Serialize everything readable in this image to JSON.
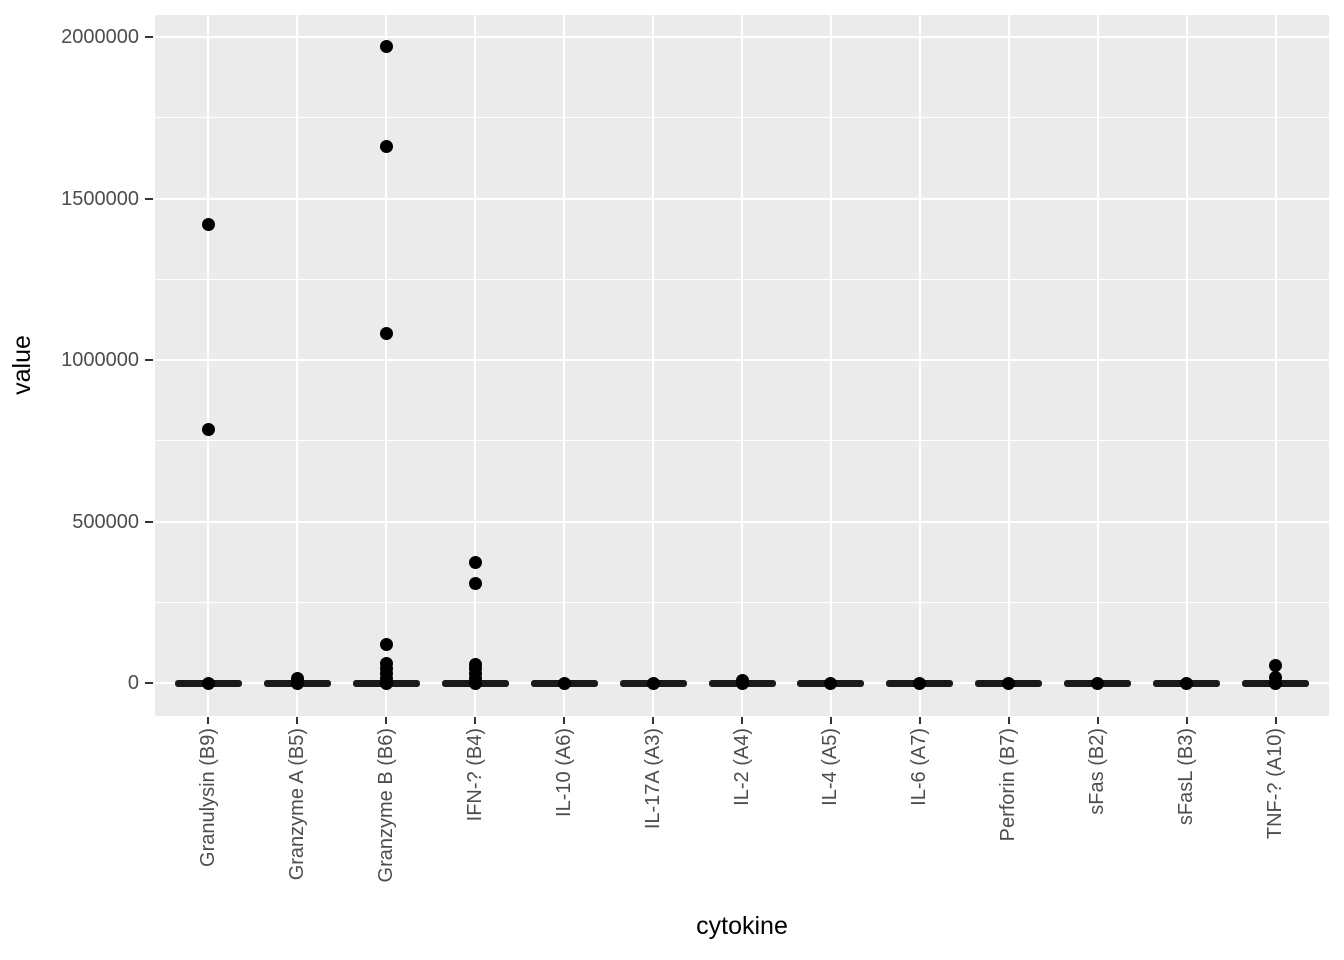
{
  "chart_data": {
    "type": "scatter",
    "variant": "strip-plot-with-median-bars",
    "title": "",
    "xlabel": "cytokine",
    "ylabel": "value",
    "legend": false,
    "grid": true,
    "panel_background": "grey",
    "categories": [
      "Granulysin (B9)",
      "Granzyme A (B5)",
      "Granzyme B (B6)",
      "IFN-? (B4)",
      "IL-10 (A6)",
      "IL-17A (A3)",
      "IL-2 (A4)",
      "IL-4 (A5)",
      "IL-6 (A7)",
      "Perforin (B7)",
      "sFas (B2)",
      "sFasL (B3)",
      "TNF-? (A10)"
    ],
    "groups": [
      {
        "label": "Granulysin (B9)",
        "median_bar": 0,
        "points": [
          0,
          784000,
          1420000
        ]
      },
      {
        "label": "Granzyme A (B5)",
        "median_bar": 0,
        "points": [
          0,
          8000,
          16000
        ]
      },
      {
        "label": "Granzyme B (B6)",
        "median_bar": 0,
        "points": [
          0,
          15000,
          30000,
          45000,
          62000,
          121000,
          1083000,
          1660000,
          1970000
        ]
      },
      {
        "label": "IFN-? (B4)",
        "median_bar": 0,
        "points": [
          0,
          15000,
          30000,
          45000,
          58000,
          310000,
          375000
        ]
      },
      {
        "label": "IL-10 (A6)",
        "median_bar": 0,
        "points": [
          0
        ]
      },
      {
        "label": "IL-17A (A3)",
        "median_bar": 0,
        "points": [
          0
        ]
      },
      {
        "label": "IL-2 (A4)",
        "median_bar": 0,
        "points": [
          0,
          9000
        ]
      },
      {
        "label": "IL-4 (A5)",
        "median_bar": 0,
        "points": [
          0
        ]
      },
      {
        "label": "IL-6 (A7)",
        "median_bar": 0,
        "points": [
          0
        ]
      },
      {
        "label": "Perforin (B7)",
        "median_bar": 0,
        "points": [
          0
        ]
      },
      {
        "label": "sFas (B2)",
        "median_bar": 0,
        "points": [
          0
        ]
      },
      {
        "label": "sFasL (B3)",
        "median_bar": 0,
        "points": [
          0
        ]
      },
      {
        "label": "TNF-? (A10)",
        "median_bar": 0,
        "points": [
          0,
          17000,
          54000
        ]
      }
    ],
    "y_ticks": [
      0,
      500000,
      1000000,
      1500000,
      2000000
    ],
    "y_tick_labels": [
      "0",
      "500000",
      "1000000",
      "1500000",
      "2000000"
    ],
    "y_minor_ticks": [
      250000,
      750000,
      1250000,
      1750000
    ],
    "ylim": [
      -101000,
      2068000
    ],
    "colors": {
      "point": "#000000",
      "median_bar": "#1A1A1A",
      "panel_background": "#EBEBEB",
      "gridline": "#FFFFFF",
      "tick_label": "#4D4D4D",
      "axis_title": "#000000",
      "tick_mark": "#333333"
    }
  }
}
